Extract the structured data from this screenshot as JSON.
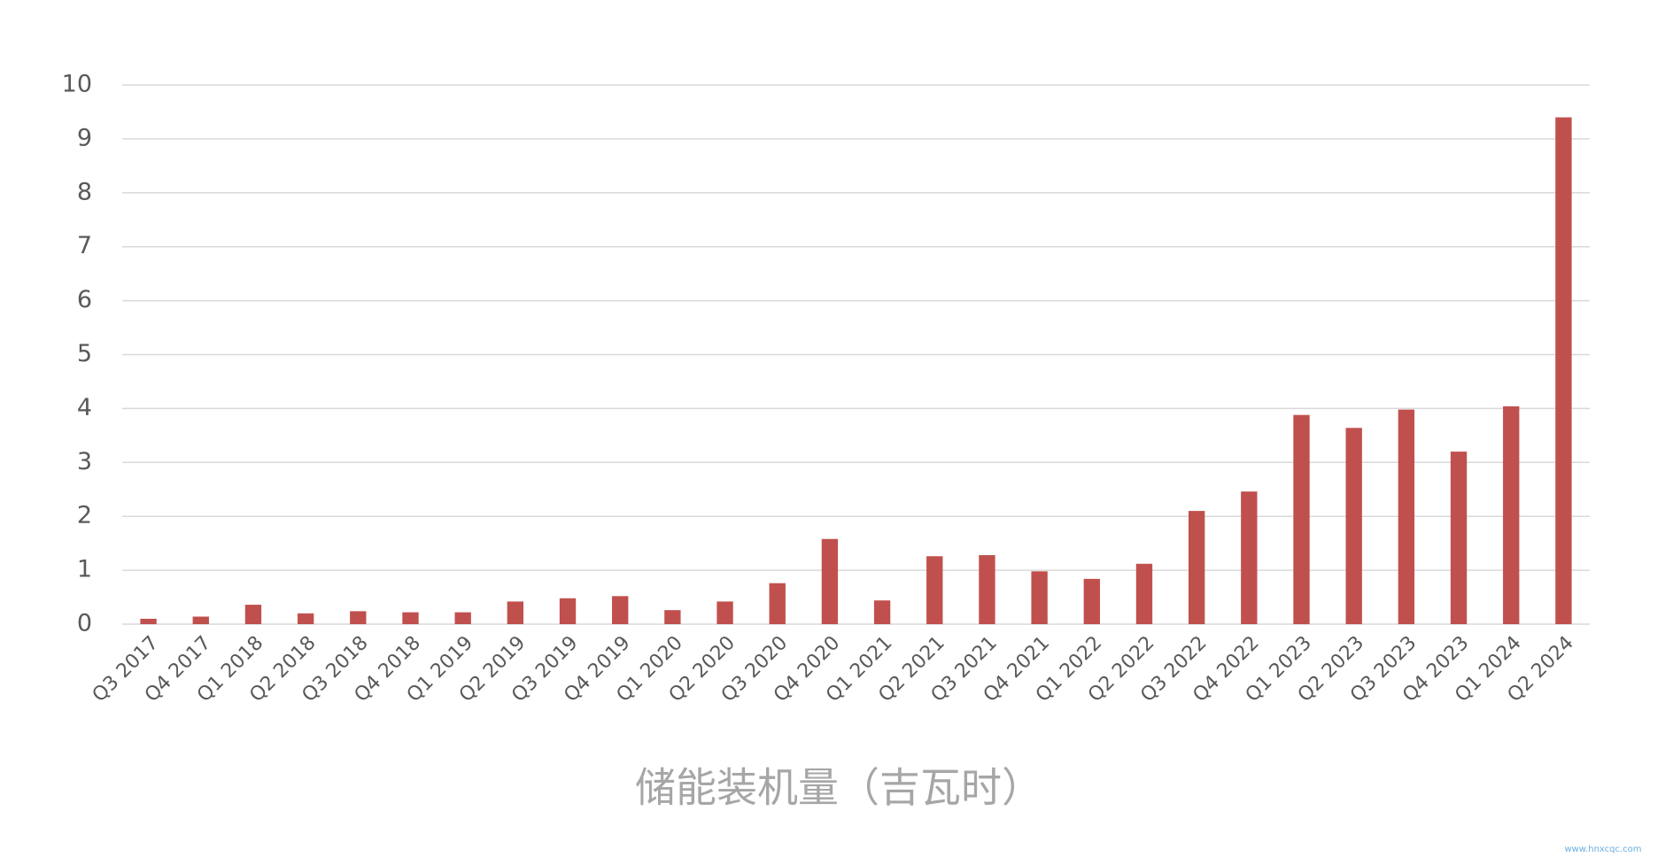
{
  "chart_data": {
    "type": "bar",
    "title": "储能装机量（吉瓦时）",
    "watermark": "www.hnxcqc.com",
    "categories": [
      "Q3 2017",
      "Q4 2017",
      "Q1 2018",
      "Q2 2018",
      "Q3 2018",
      "Q4 2018",
      "Q1 2019",
      "Q2 2019",
      "Q3 2019",
      "Q4 2019",
      "Q1 2020",
      "Q2 2020",
      "Q3 2020",
      "Q4 2020",
      "Q1 2021",
      "Q2 2021",
      "Q3 2021",
      "Q4 2021",
      "Q1 2022",
      "Q2 2022",
      "Q3 2022",
      "Q4 2022",
      "Q1 2023",
      "Q2 2023",
      "Q3 2023",
      "Q4 2023",
      "Q1 2024",
      "Q2 2024"
    ],
    "values": [
      0.1,
      0.14,
      0.36,
      0.2,
      0.24,
      0.22,
      0.22,
      0.42,
      0.48,
      0.52,
      0.26,
      0.42,
      0.76,
      1.58,
      0.44,
      1.26,
      1.28,
      0.98,
      0.84,
      1.12,
      2.1,
      2.46,
      3.88,
      3.64,
      3.98,
      3.2,
      4.04,
      9.4
    ],
    "color": "#c0504d",
    "ylim": [
      0,
      10
    ],
    "yticks": [
      0,
      1,
      2,
      3,
      4,
      5,
      6,
      7,
      8,
      9,
      10
    ],
    "grid": true
  }
}
